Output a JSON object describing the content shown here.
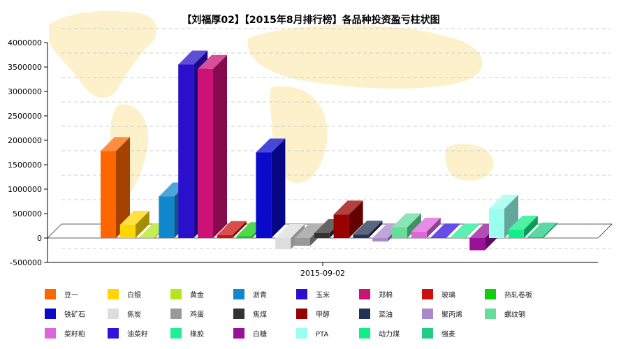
{
  "chart_data": {
    "type": "bar",
    "title": "【刘福厚02】【2015年8月排行榜】各品种投资盈亏柱状图",
    "categories": [
      "2015-09-02"
    ],
    "ylim": [
      -500000,
      4000000
    ],
    "yticks": [
      "-500000",
      "0",
      "500000",
      "1000000",
      "1500000",
      "2000000",
      "2500000",
      "3000000",
      "3500000",
      "4000000"
    ],
    "grid": true,
    "legend_position": "bottom",
    "series": [
      {
        "name": "豆一",
        "color": "#ff6600",
        "value": 1780000
      },
      {
        "name": "白银",
        "color": "#ffd700",
        "value": 270000
      },
      {
        "name": "黄金",
        "color": "#b5e61d",
        "value": 20000
      },
      {
        "name": "沥青",
        "color": "#1188cc",
        "value": 850000
      },
      {
        "name": "玉米",
        "color": "#2a10cc",
        "value": 3550000
      },
      {
        "name": "郑棉",
        "color": "#cc1177",
        "value": 3460000
      },
      {
        "name": "玻璃",
        "color": "#cc1111",
        "value": 60000
      },
      {
        "name": "热轧卷板",
        "color": "#11cc11",
        "value": 40000
      },
      {
        "name": "铁矿石",
        "color": "#0a0acc",
        "value": 1750000
      },
      {
        "name": "焦炭",
        "color": "#dddddd",
        "value": -230000
      },
      {
        "name": "鸡蛋",
        "color": "#999999",
        "value": -160000
      },
      {
        "name": "焦煤",
        "color": "#333333",
        "value": 100000
      },
      {
        "name": "甲醇",
        "color": "#990000",
        "value": 480000
      },
      {
        "name": "菜油",
        "color": "#223355",
        "value": 70000
      },
      {
        "name": "聚丙烯",
        "color": "#aa88cc",
        "value": -70000
      },
      {
        "name": "螺纹钢",
        "color": "#66dd99",
        "value": 220000
      },
      {
        "name": "菜籽粕",
        "color": "#dd66dd",
        "value": 130000
      },
      {
        "name": "油菜籽",
        "color": "#3311dd",
        "value": 10000
      },
      {
        "name": "橡胶",
        "color": "#22ee99",
        "value": 10000
      },
      {
        "name": "白糖",
        "color": "#991199",
        "value": -250000
      },
      {
        "name": "PTA",
        "color": "#99ffee",
        "value": 600000
      },
      {
        "name": "动力煤",
        "color": "#11ee88",
        "value": 170000
      },
      {
        "name": "强麦",
        "color": "#22cc88",
        "value": 30000
      }
    ]
  }
}
